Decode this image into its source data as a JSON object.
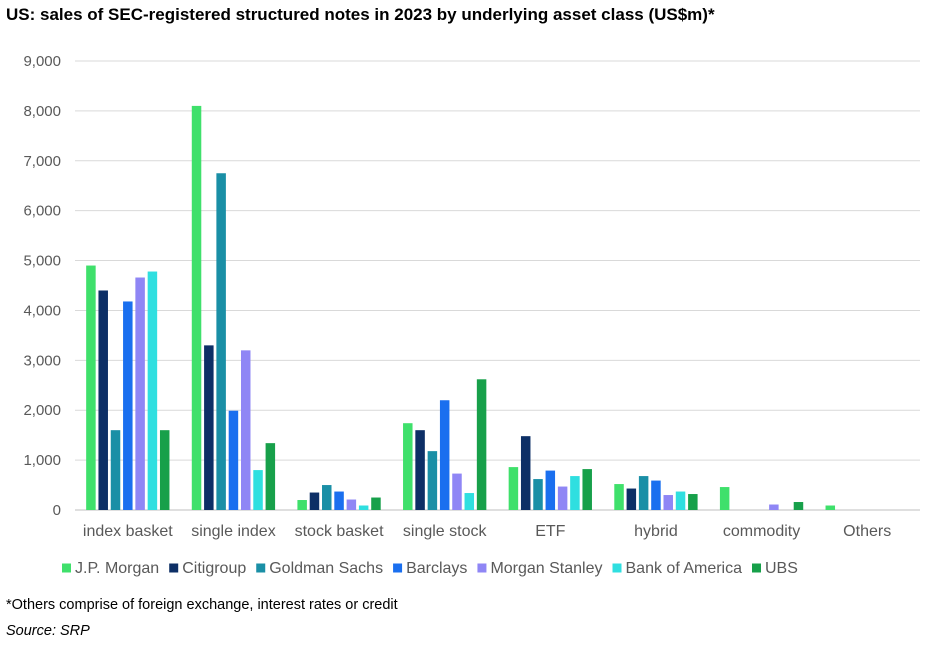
{
  "title": "US: sales of SEC-registered structured notes in 2023 by underlying asset class (US$m)*",
  "footnote": "*Others comprise of foreign exchange, interest rates or credit",
  "source": "Source: SRP",
  "chart_data": {
    "type": "bar",
    "title": "US: sales of SEC-registered structured notes in 2023 by underlying asset class (US$m)*",
    "xlabel": "",
    "ylabel": "",
    "ylim": [
      0,
      9000
    ],
    "yticks": [
      0,
      1000,
      2000,
      3000,
      4000,
      5000,
      6000,
      7000,
      8000,
      9000
    ],
    "ytick_labels": [
      "0",
      "1,000",
      "2,000",
      "3,000",
      "4,000",
      "5,000",
      "6,000",
      "7,000",
      "8,000",
      "9,000"
    ],
    "grid": "horizontal",
    "legend_position": "bottom",
    "categories": [
      "index basket",
      "single index",
      "stock basket",
      "single stock",
      "ETF",
      "hybrid",
      "commodity",
      "Others"
    ],
    "series": [
      {
        "name": "J.P. Morgan",
        "color": "#3fe06b",
        "values": [
          4900,
          8100,
          200,
          1740,
          860,
          520,
          460,
          90
        ]
      },
      {
        "name": "Citigroup",
        "color": "#0d2f66",
        "values": [
          4400,
          3300,
          350,
          1600,
          1480,
          430,
          0,
          0
        ]
      },
      {
        "name": "Goldman Sachs",
        "color": "#1a8fa6",
        "values": [
          1600,
          6750,
          500,
          1180,
          620,
          680,
          0,
          0
        ]
      },
      {
        "name": "Barclays",
        "color": "#1a6fef",
        "values": [
          4180,
          1990,
          370,
          2200,
          790,
          590,
          0,
          0
        ]
      },
      {
        "name": "Morgan Stanley",
        "color": "#8f86f5",
        "values": [
          4660,
          3200,
          210,
          730,
          470,
          300,
          110,
          0
        ]
      },
      {
        "name": "Bank of America",
        "color": "#2fdfe0",
        "values": [
          4780,
          800,
          90,
          340,
          680,
          370,
          0,
          0
        ]
      },
      {
        "name": "UBS",
        "color": "#17a04a",
        "values": [
          1600,
          1340,
          250,
          2620,
          820,
          320,
          160,
          0
        ]
      }
    ]
  }
}
